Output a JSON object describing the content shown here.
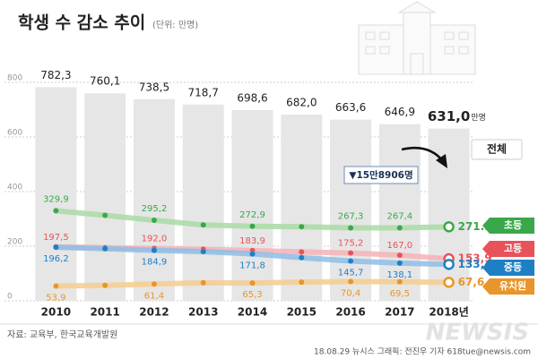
{
  "chart_data": {
    "type": "bar",
    "title": "학생 수 감소 추이",
    "unit_note": "(단위: 만명)",
    "categories": [
      "2010",
      "2011",
      "2012",
      "2013",
      "2014",
      "2015",
      "2016",
      "2017",
      "2018년"
    ],
    "totals": {
      "name": "전체",
      "color": "#e6e6e6",
      "values": [
        782.3,
        760.1,
        738.5,
        718.7,
        698.6,
        682.0,
        663.6,
        646.9,
        631.0
      ],
      "value_labels": [
        "782,3",
        "760,1",
        "738,5",
        "718,7",
        "698,6",
        "682,0",
        "663,6",
        "646,9",
        "631,0"
      ],
      "unit": "만명"
    },
    "series": [
      {
        "name": "초등",
        "color": "#3aa84a",
        "line_color": "#a9dba4",
        "values": [
          329.9,
          313,
          295.2,
          278,
          272.9,
          271.5,
          267.3,
          267.4,
          271.1
        ],
        "value_labels": [
          "329,9",
          null,
          "295,2",
          null,
          "272,9",
          null,
          "267,3",
          "267,4",
          "271.1"
        ]
      },
      {
        "name": "고등",
        "color": "#e8525a",
        "line_color": "#f5b3b6",
        "values": [
          197.5,
          194.5,
          192.0,
          189,
          183.9,
          179,
          175.2,
          167.0,
          153.9
        ],
        "value_labels": [
          "197,5",
          null,
          "192,0",
          null,
          "183,9",
          null,
          "175,2",
          "167,0",
          "153,9"
        ]
      },
      {
        "name": "중등",
        "color": "#1f7fc4",
        "line_color": "#8dbde6",
        "values": [
          196.2,
          191,
          184.9,
          180.4,
          171.8,
          158,
          145.7,
          138.1,
          133.4
        ],
        "value_labels": [
          "196,2",
          null,
          "184,9",
          null,
          "171,8",
          null,
          "145,7",
          "138,1",
          "133,4"
        ]
      },
      {
        "name": "유치원",
        "color": "#e8952a",
        "line_color": "#f5cd8e",
        "values": [
          53.9,
          56.5,
          61.4,
          65.8,
          65.3,
          68.3,
          70.4,
          69.5,
          67.6
        ],
        "value_labels": [
          "53,9",
          null,
          "61,4",
          null,
          "65,3",
          null,
          "70,4",
          "69,5",
          "67,6"
        ]
      }
    ],
    "ylim": [
      0,
      800
    ],
    "yticks": [
      0,
      200,
      400,
      600,
      800
    ],
    "grid": true,
    "annotation": "▼15만8906명",
    "source": "자료: 교육부, 한국교육개발원",
    "credit": "18.08.29 뉴시스 그래픽: 전진우 기자 618tue@newsis.com",
    "watermark": "NEWSIS"
  }
}
